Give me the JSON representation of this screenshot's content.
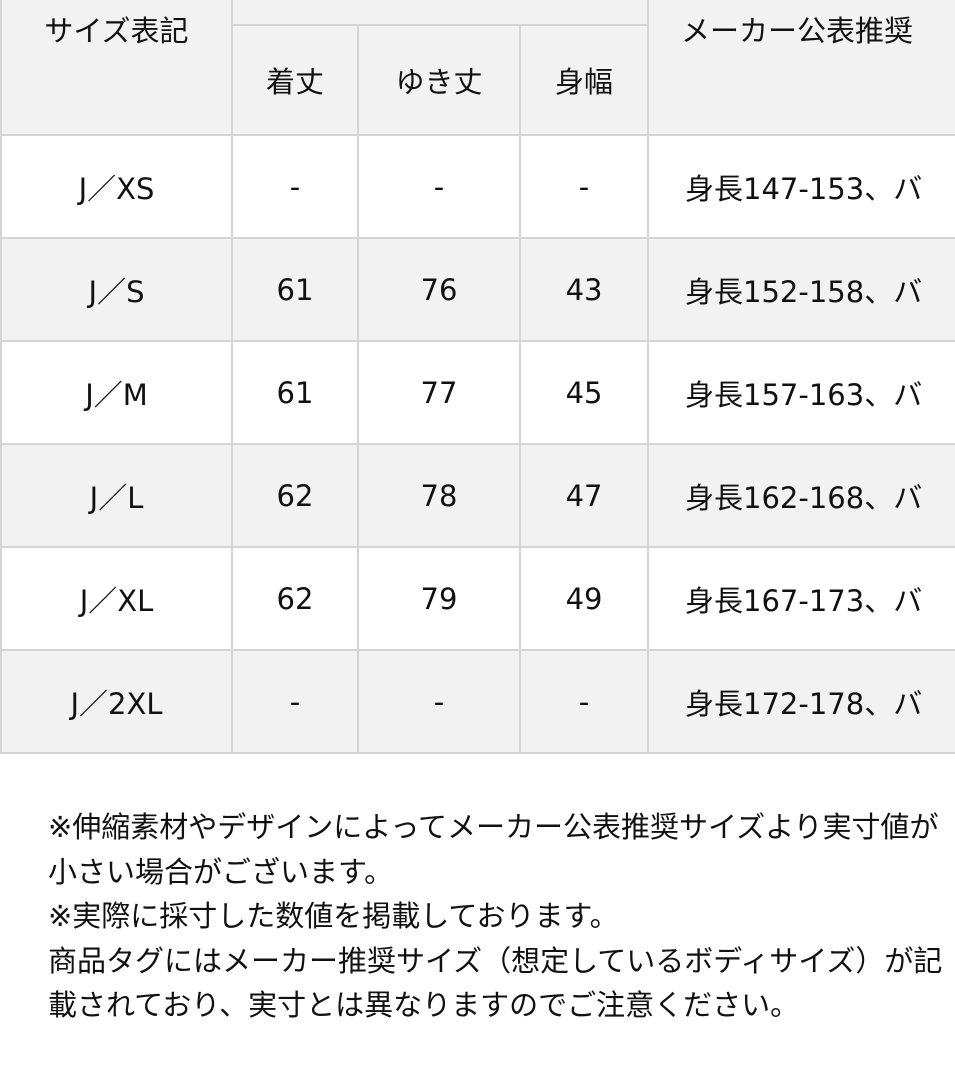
{
  "table": {
    "headers": {
      "size_label": "サイズ表記",
      "measure_group": "",
      "measures": [
        "着丈",
        "ゆき丈",
        "身幅"
      ],
      "recommended": "メーカー公表推奨"
    },
    "rows": [
      {
        "size": "J／XS",
        "length": "-",
        "sleeve": "-",
        "width": "-",
        "recommended": "身長147-153、バ"
      },
      {
        "size": "J／S",
        "length": "61",
        "sleeve": "76",
        "width": "43",
        "recommended": "身長152-158、バ"
      },
      {
        "size": "J／M",
        "length": "61",
        "sleeve": "77",
        "width": "45",
        "recommended": "身長157-163、バ"
      },
      {
        "size": "J／L",
        "length": "62",
        "sleeve": "78",
        "width": "47",
        "recommended": "身長162-168、バ"
      },
      {
        "size": "J／XL",
        "length": "62",
        "sleeve": "79",
        "width": "49",
        "recommended": "身長167-173、バ"
      },
      {
        "size": "J／2XL",
        "length": "-",
        "sleeve": "-",
        "width": "-",
        "recommended": "身長172-178、バ"
      }
    ]
  },
  "notes": [
    "※伸縮素材やデザインによってメーカー公表推奨サイズより実寸値が小さい場合がございます。",
    "※実際に採寸した数値を掲載しております。",
    "商品タグにはメーカー推奨サイズ（想定しているボディサイズ）が記載されており、実寸とは異なりますのでご注意ください。"
  ],
  "colors": {
    "header_bg": "#f2f2f2",
    "border": "#d4d4d4",
    "alt_row_bg": "#f2f2f2"
  }
}
